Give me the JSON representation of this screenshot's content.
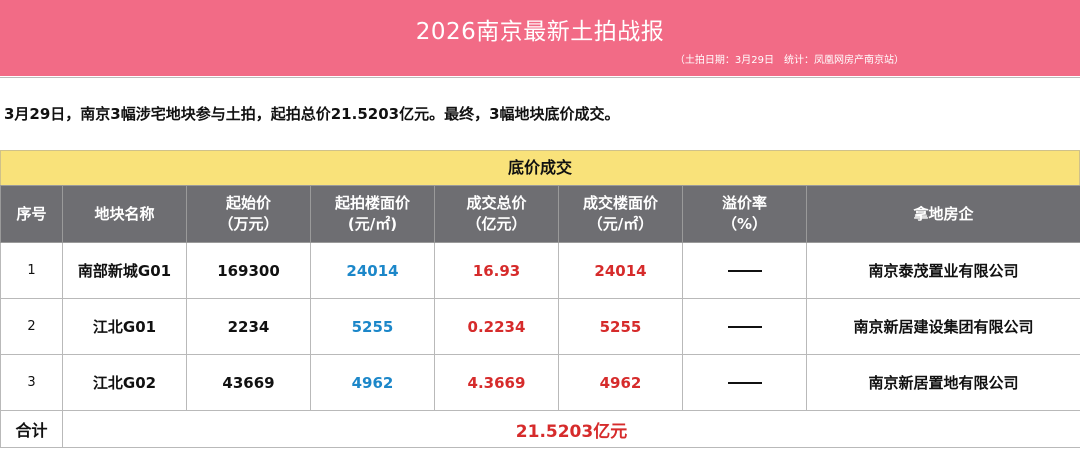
{
  "header": {
    "title": "2026南京最新土拍战报",
    "subtitle": "（土拍日期：3月29日　统计：凤凰网房产南京站）"
  },
  "summary": "3月29日，南京3幅涉宅地块参与土拍，起拍总价21.5203亿元。最终，3幅地块底价成交。",
  "section_title": "底价成交",
  "columns": [
    {
      "line1": "序号",
      "line2": ""
    },
    {
      "line1": "地块名称",
      "line2": ""
    },
    {
      "line1": "起始价",
      "line2": "（万元）"
    },
    {
      "line1": "起拍楼面价",
      "line2": "(元/㎡)"
    },
    {
      "line1": "成交总价",
      "line2": "（亿元）"
    },
    {
      "line1": "成交楼面价",
      "line2": "（元/㎡）"
    },
    {
      "line1": "溢价率",
      "line2": "（%）"
    },
    {
      "line1": "拿地房企",
      "line2": ""
    }
  ],
  "rows": [
    {
      "no": "1",
      "name": "南部新城G01",
      "start_price": "169300",
      "start_floor_price": "24014",
      "deal_total": "16.93",
      "deal_floor_price": "24014",
      "company": "南京泰茂置业有限公司"
    },
    {
      "no": "2",
      "name": "江北G01",
      "start_price": "2234",
      "start_floor_price": "5255",
      "deal_total": "0.2234",
      "deal_floor_price": "5255",
      "company": "南京新居建设集团有限公司"
    },
    {
      "no": "3",
      "name": "江北G02",
      "start_price": "43669",
      "start_floor_price": "4962",
      "deal_total": "4.3669",
      "deal_floor_price": "4962",
      "company": "南京新居置地有限公司"
    }
  ],
  "total": {
    "label": "合计",
    "value": "21.5203亿元"
  },
  "colors": {
    "header_bg": "#f26b86",
    "section_bg": "#f9e27a",
    "table_header_bg": "#6e6e72",
    "blue_value": "#1c87c9",
    "red_value": "#d62b2b"
  }
}
